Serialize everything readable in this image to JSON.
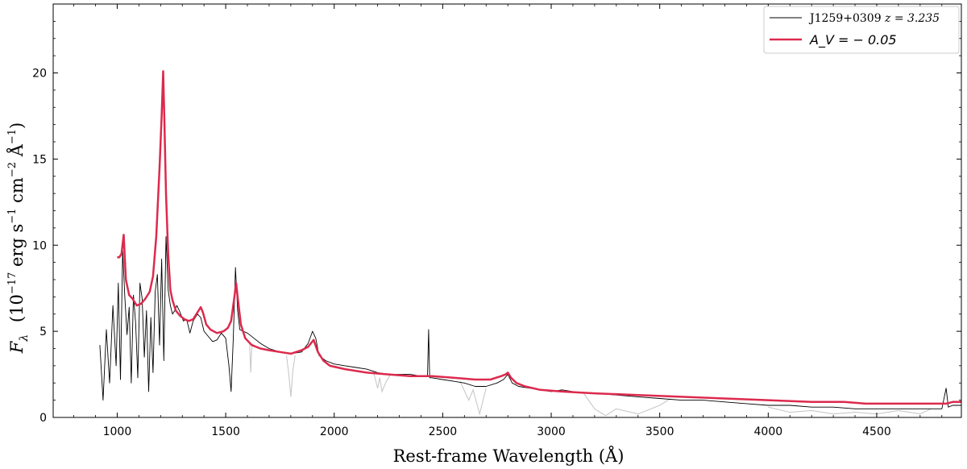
{
  "chart_data": {
    "type": "line",
    "xlabel": "Rest-frame Wavelength  (Å)",
    "ylabel": "F_λ  (10⁻¹⁷ erg s⁻¹ cm⁻² Å⁻¹)",
    "xlim": [
      705,
      4890
    ],
    "ylim": [
      0,
      24
    ],
    "xticks": [
      1000,
      1500,
      2000,
      2500,
      3000,
      3500,
      4000,
      4500
    ],
    "yticks": [
      0,
      5,
      10,
      15,
      20
    ],
    "legend_position": "top-right",
    "series": [
      {
        "name": "J1259+0309   z = 3.235",
        "color": "#000000",
        "style": "observed spectrum",
        "x": [
          920,
          935,
          950,
          965,
          980,
          995,
          1005,
          1015,
          1025,
          1035,
          1045,
          1055,
          1065,
          1075,
          1085,
          1095,
          1105,
          1115,
          1125,
          1135,
          1145,
          1155,
          1165,
          1175,
          1185,
          1195,
          1205,
          1215,
          1225,
          1235,
          1245,
          1255,
          1265,
          1275,
          1290,
          1305,
          1320,
          1335,
          1350,
          1370,
          1385,
          1400,
          1420,
          1440,
          1460,
          1480,
          1500,
          1515,
          1525,
          1535,
          1545,
          1555,
          1565,
          1580,
          1600,
          1630,
          1660,
          1700,
          1750,
          1800,
          1850,
          1880,
          1900,
          1915,
          1930,
          1960,
          2000,
          2050,
          2100,
          2150,
          2200,
          2250,
          2300,
          2350,
          2400,
          2430,
          2435,
          2440,
          2450,
          2500,
          2550,
          2600,
          2650,
          2700,
          2750,
          2780,
          2800,
          2820,
          2850,
          2900,
          2950,
          3000,
          3050,
          3100,
          3150,
          3200,
          3300,
          3400,
          3500,
          3600,
          3700,
          3800,
          3900,
          4000,
          4100,
          4200,
          4300,
          4400,
          4500,
          4600,
          4700,
          4800,
          4820,
          4830,
          4850,
          4890
        ],
        "y": [
          4.2,
          1.0,
          5.1,
          2.0,
          6.5,
          3.0,
          7.8,
          2.2,
          9.7,
          7.0,
          4.8,
          6.4,
          2.0,
          7.1,
          5.5,
          2.3,
          7.8,
          6.9,
          3.5,
          6.2,
          1.5,
          5.8,
          2.6,
          7.3,
          8.3,
          4.2,
          9.2,
          3.3,
          10.5,
          7.4,
          6.5,
          6.0,
          6.2,
          6.5,
          6.1,
          5.6,
          5.7,
          4.9,
          5.6,
          6.0,
          5.8,
          5.0,
          4.7,
          4.4,
          4.5,
          4.9,
          4.6,
          3.0,
          1.5,
          4.6,
          8.7,
          6.2,
          5.1,
          5.0,
          4.9,
          4.6,
          4.3,
          4.0,
          3.8,
          3.7,
          3.8,
          4.3,
          5.0,
          4.6,
          3.6,
          3.3,
          3.1,
          3.0,
          2.9,
          2.8,
          2.6,
          2.5,
          2.5,
          2.5,
          2.4,
          2.4,
          5.1,
          2.3,
          2.3,
          2.2,
          2.1,
          2.0,
          1.8,
          1.8,
          2.0,
          2.2,
          2.5,
          2.0,
          1.8,
          1.7,
          1.6,
          1.5,
          1.6,
          1.5,
          1.4,
          1.4,
          1.3,
          1.2,
          1.1,
          1.0,
          1.0,
          0.9,
          0.8,
          0.7,
          0.7,
          0.6,
          0.6,
          0.5,
          0.5,
          0.5,
          0.5,
          0.5,
          1.7,
          0.6,
          0.7,
          0.7
        ]
      },
      {
        "name": "A_V = −0.05",
        "color": "#dc2a4d",
        "style": "model",
        "x": [
          1000,
          1010,
          1020,
          1030,
          1040,
          1055,
          1070,
          1090,
          1110,
          1130,
          1150,
          1165,
          1180,
          1195,
          1205,
          1212,
          1218,
          1225,
          1235,
          1245,
          1255,
          1270,
          1290,
          1310,
          1330,
          1350,
          1370,
          1385,
          1395,
          1410,
          1430,
          1460,
          1490,
          1510,
          1525,
          1540,
          1548,
          1555,
          1570,
          1590,
          1620,
          1660,
          1700,
          1750,
          1800,
          1850,
          1880,
          1905,
          1925,
          1950,
          1980,
          2050,
          2150,
          2250,
          2350,
          2450,
          2550,
          2650,
          2720,
          2770,
          2790,
          2800,
          2815,
          2840,
          2880,
          2950,
          3050,
          3200,
          3400,
          3600,
          3800,
          4000,
          4200,
          4350,
          4450,
          4600,
          4750,
          4820,
          4850,
          4890
        ],
        "y": [
          9.3,
          9.3,
          9.5,
          10.6,
          8.0,
          7.1,
          6.9,
          6.5,
          6.6,
          6.9,
          7.3,
          8.2,
          10.5,
          14.5,
          17.5,
          20.1,
          17.0,
          13.0,
          9.5,
          7.4,
          6.8,
          6.2,
          5.9,
          5.7,
          5.6,
          5.7,
          6.1,
          6.4,
          6.1,
          5.4,
          5.1,
          4.9,
          5.0,
          5.2,
          5.6,
          7.0,
          7.8,
          7.0,
          5.4,
          4.6,
          4.2,
          4.0,
          3.9,
          3.8,
          3.7,
          3.9,
          4.1,
          4.5,
          3.8,
          3.3,
          3.0,
          2.8,
          2.6,
          2.5,
          2.4,
          2.4,
          2.3,
          2.2,
          2.2,
          2.4,
          2.5,
          2.6,
          2.3,
          2.0,
          1.8,
          1.6,
          1.5,
          1.4,
          1.3,
          1.2,
          1.1,
          1.0,
          0.9,
          0.9,
          0.8,
          0.8,
          0.8,
          0.8,
          0.9,
          0.9
        ]
      },
      {
        "name": "",
        "color": "#c8c8c8",
        "style": "masked regions",
        "segments": [
          {
            "x": [
              1610,
              1615,
              1620,
              1625
            ],
            "y": [
              4.4,
              2.6,
              4.0,
              4.3
            ]
          },
          {
            "x": [
              1780,
              1790,
              1800,
              1810,
              1820
            ],
            "y": [
              3.6,
              2.6,
              1.2,
              2.8,
              3.6
            ]
          },
          {
            "x": [
              2180,
              2200,
              2210,
              2220,
              2240,
              2260
            ],
            "y": [
              2.7,
              1.7,
              2.3,
              1.5,
              2.1,
              2.5
            ]
          },
          {
            "x": [
              2580,
              2620,
              2640,
              2670,
              2700
            ],
            "y": [
              2.1,
              1.0,
              1.6,
              0.2,
              1.7
            ]
          },
          {
            "x": [
              3150,
              3200,
              3250,
              3300,
              3400,
              3500,
              3550
            ],
            "y": [
              1.4,
              0.5,
              0.1,
              0.5,
              0.2,
              0.7,
              1.1
            ]
          },
          {
            "x": [
              4000,
              4100,
              4200,
              4300,
              4400,
              4500,
              4600,
              4700,
              4750
            ],
            "y": [
              0.6,
              0.3,
              0.4,
              0.2,
              0.3,
              0.2,
              0.4,
              0.2,
              0.5
            ]
          }
        ]
      }
    ]
  },
  "legend": {
    "entry1_name": "J1259+0309",
    "entry1_z": "z = 3.235",
    "entry2": "A_V = − 0.05"
  }
}
